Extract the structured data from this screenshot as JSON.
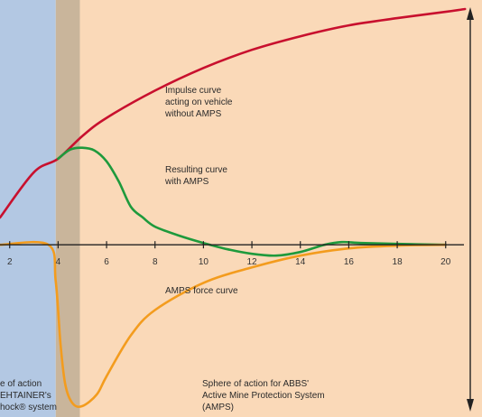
{
  "chart_data": {
    "type": "line",
    "x_ticks": [
      2,
      4,
      6,
      8,
      10,
      12,
      14,
      16,
      18,
      20
    ],
    "xlim": [
      1.6,
      21.5
    ],
    "ylim": [
      -1.9,
      2.7
    ],
    "grid": false,
    "legend": "none",
    "regions": [
      {
        "name": "left-zone",
        "x": [
          1.6,
          3.9
        ],
        "color": "#b3c8e3",
        "lines": [
          "e of action",
          "EHTAINER's",
          "hock® system"
        ]
      },
      {
        "name": "overlap-zone",
        "x": [
          3.9,
          4.9
        ],
        "color": "#c9b59b",
        "lines": []
      },
      {
        "name": "right-zone",
        "x": [
          4.9,
          21.5
        ],
        "color": "#fad9b8",
        "lines": [
          "Sphere of action for ABBS'",
          "Active Mine Protection System",
          "(AMPS)"
        ]
      }
    ],
    "series": [
      {
        "name": "impulse",
        "color": "#c8102e",
        "label_lines": [
          "Impulse curve",
          "acting on vehicle",
          "without AMPS"
        ],
        "x": [
          1.6,
          3,
          4,
          5,
          6,
          8,
          10,
          12,
          14,
          16,
          18,
          20,
          20.8
        ],
        "y": [
          0.3,
          0.8,
          0.95,
          1.2,
          1.4,
          1.7,
          1.95,
          2.15,
          2.3,
          2.42,
          2.5,
          2.57,
          2.6
        ]
      },
      {
        "name": "resulting",
        "color": "#1e9a3c",
        "label_lines": [
          "Resulting curve",
          "with AMPS"
        ],
        "x": [
          4,
          4.5,
          5,
          5.5,
          6,
          6.5,
          7,
          7.5,
          8,
          9,
          10,
          11,
          12,
          13,
          14,
          15,
          15.7,
          16.5,
          18,
          20
        ],
        "y": [
          0.95,
          1.05,
          1.07,
          1.04,
          0.92,
          0.7,
          0.42,
          0.3,
          0.2,
          0.1,
          0.02,
          -0.05,
          -0.1,
          -0.12,
          -0.08,
          0.0,
          0.03,
          0.02,
          0.01,
          0.0
        ]
      },
      {
        "name": "amps-force",
        "color": "#f39c1e",
        "label_lines": [
          "AMPS force curve"
        ],
        "x": [
          1.6,
          3.6,
          3.9,
          4.1,
          4.3,
          4.6,
          5.0,
          5.6,
          6.0,
          7,
          8,
          10,
          12,
          14,
          16,
          18,
          20
        ],
        "y": [
          0.0,
          0.0,
          -0.4,
          -1.1,
          -1.55,
          -1.75,
          -1.78,
          -1.65,
          -1.45,
          -1.0,
          -0.72,
          -0.42,
          -0.25,
          -0.12,
          -0.04,
          -0.01,
          0.0
        ]
      }
    ]
  }
}
